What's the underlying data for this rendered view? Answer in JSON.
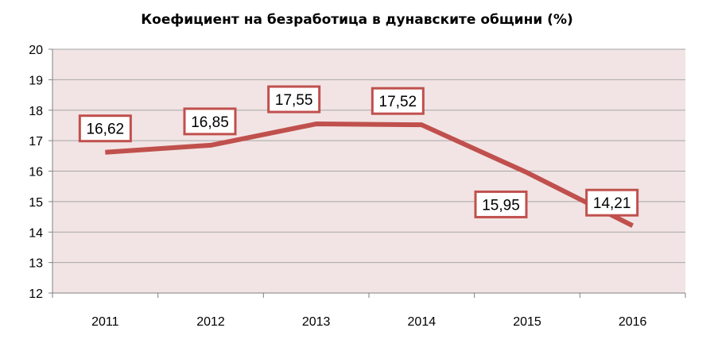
{
  "chart_data": {
    "type": "line",
    "title": "Коефициент на безработица  в дунавските общини (%)",
    "xlabel": "",
    "ylabel": "",
    "categories": [
      "2011",
      "2012",
      "2013",
      "2014",
      "2015",
      "2016"
    ],
    "series": [
      {
        "values": [
          16.62,
          16.85,
          17.55,
          17.52,
          15.95,
          14.21
        ]
      }
    ],
    "data_labels": [
      "16,62",
      "16,85",
      "17,55",
      "17,52",
      "15,95",
      "14,21"
    ],
    "y_ticks": [
      "12",
      "13",
      "14",
      "15",
      "16",
      "17",
      "18",
      "19",
      "20"
    ],
    "ylim": [
      12,
      20
    ],
    "grid": true,
    "legend": "none",
    "colors": {
      "line": "#c0504d",
      "plot_background": "#f2e4e4",
      "label_border": "#c0504d",
      "gridline": "#a6a6a6"
    }
  }
}
